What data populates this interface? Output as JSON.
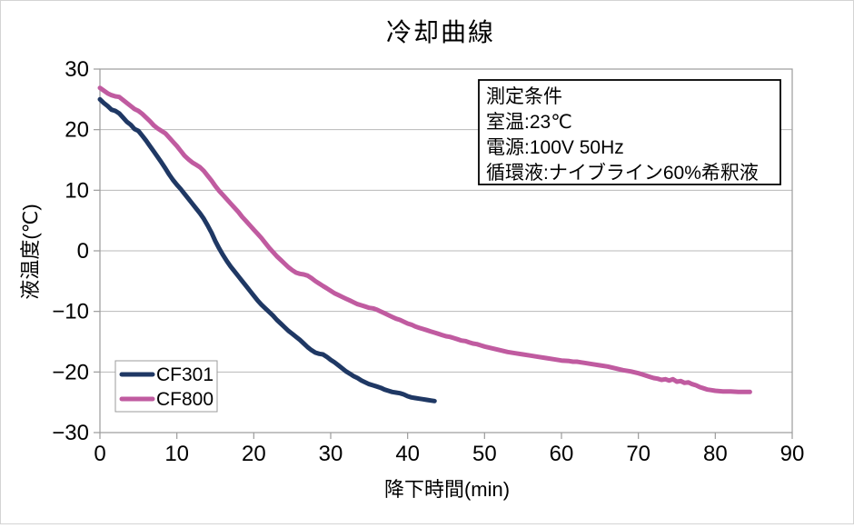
{
  "chart_data": {
    "type": "line",
    "title": "冷却曲線",
    "xlabel": "降下時間(min)",
    "ylabel": "液温度(℃)",
    "xlim": [
      0,
      90
    ],
    "ylim": [
      -30,
      30
    ],
    "x_ticks": [
      0,
      10,
      20,
      30,
      40,
      50,
      60,
      70,
      80,
      90
    ],
    "y_ticks": [
      30,
      20,
      10,
      0,
      -10,
      -20,
      -30
    ],
    "grid": "horizontal",
    "legend_position": "inside-bottom-left",
    "annotation_box": {
      "lines": [
        "測定条件",
        "室温:23℃",
        "電源:100V 50Hz",
        "循環液:ナイブライン60%希釈液"
      ]
    },
    "series": [
      {
        "name": "CF301",
        "color": "#1F3864",
        "points": [
          [
            0,
            25.0
          ],
          [
            0.5,
            24.4
          ],
          [
            1,
            23.9
          ],
          [
            1.5,
            23.3
          ],
          [
            2,
            23.1
          ],
          [
            2.5,
            22.7
          ],
          [
            3,
            22.0
          ],
          [
            3.5,
            21.3
          ],
          [
            4,
            20.8
          ],
          [
            4.5,
            20.1
          ],
          [
            5,
            19.8
          ],
          [
            5.5,
            19.0
          ],
          [
            6,
            18.2
          ],
          [
            6.5,
            17.3
          ],
          [
            7,
            16.4
          ],
          [
            7.5,
            15.5
          ],
          [
            8,
            14.6
          ],
          [
            8.5,
            13.6
          ],
          [
            9,
            12.6
          ],
          [
            9.5,
            11.7
          ],
          [
            10,
            10.9
          ],
          [
            10.5,
            10.2
          ],
          [
            11,
            9.4
          ],
          [
            11.5,
            8.6
          ],
          [
            12,
            7.8
          ],
          [
            12.5,
            7.0
          ],
          [
            13,
            6.2
          ],
          [
            13.5,
            5.3
          ],
          [
            14,
            4.2
          ],
          [
            14.5,
            3.0
          ],
          [
            15,
            1.6
          ],
          [
            15.5,
            0.4
          ],
          [
            16,
            -0.7
          ],
          [
            16.5,
            -1.7
          ],
          [
            17,
            -2.6
          ],
          [
            17.5,
            -3.4
          ],
          [
            18,
            -4.2
          ],
          [
            18.5,
            -5.0
          ],
          [
            19,
            -5.8
          ],
          [
            19.5,
            -6.6
          ],
          [
            20,
            -7.4
          ],
          [
            20.5,
            -8.2
          ],
          [
            21,
            -8.9
          ],
          [
            21.5,
            -9.5
          ],
          [
            22,
            -10.1
          ],
          [
            22.5,
            -10.7
          ],
          [
            23,
            -11.4
          ],
          [
            23.5,
            -12.0
          ],
          [
            24,
            -12.6
          ],
          [
            24.5,
            -13.2
          ],
          [
            25,
            -13.7
          ],
          [
            25.5,
            -14.2
          ],
          [
            26,
            -14.7
          ],
          [
            26.5,
            -15.3
          ],
          [
            27,
            -15.9
          ],
          [
            27.5,
            -16.4
          ],
          [
            28,
            -16.8
          ],
          [
            28.5,
            -17.0
          ],
          [
            29,
            -17.1
          ],
          [
            29.5,
            -17.5
          ],
          [
            30,
            -18.0
          ],
          [
            30.5,
            -18.4
          ],
          [
            31,
            -18.9
          ],
          [
            31.5,
            -19.4
          ],
          [
            32,
            -19.9
          ],
          [
            32.5,
            -20.3
          ],
          [
            33,
            -20.7
          ],
          [
            33.5,
            -21.0
          ],
          [
            34,
            -21.4
          ],
          [
            34.5,
            -21.7
          ],
          [
            35,
            -22.0
          ],
          [
            35.5,
            -22.2
          ],
          [
            36,
            -22.4
          ],
          [
            36.5,
            -22.6
          ],
          [
            37,
            -22.9
          ],
          [
            37.5,
            -23.1
          ],
          [
            38,
            -23.3
          ],
          [
            38.5,
            -23.4
          ],
          [
            39,
            -23.5
          ],
          [
            39.5,
            -23.7
          ],
          [
            40,
            -24.0
          ],
          [
            40.5,
            -24.2
          ],
          [
            41,
            -24.3
          ],
          [
            41.5,
            -24.4
          ],
          [
            42,
            -24.5
          ],
          [
            42.5,
            -24.6
          ],
          [
            43,
            -24.7
          ],
          [
            43.5,
            -24.8
          ]
        ]
      },
      {
        "name": "CF800",
        "color": "#C05BA0",
        "points": [
          [
            0,
            26.9
          ],
          [
            1,
            26.0
          ],
          [
            1.5,
            25.7
          ],
          [
            2,
            25.5
          ],
          [
            2.5,
            25.4
          ],
          [
            3,
            24.9
          ],
          [
            4,
            23.9
          ],
          [
            4.5,
            23.4
          ],
          [
            5,
            23.1
          ],
          [
            5.5,
            22.6
          ],
          [
            6,
            22.0
          ],
          [
            6.5,
            21.4
          ],
          [
            7,
            20.7
          ],
          [
            7.5,
            20.2
          ],
          [
            8,
            19.8
          ],
          [
            8.5,
            19.4
          ],
          [
            9,
            18.7
          ],
          [
            9.5,
            18.0
          ],
          [
            10,
            17.3
          ],
          [
            10.5,
            16.5
          ],
          [
            11,
            15.7
          ],
          [
            11.5,
            15.1
          ],
          [
            12,
            14.6
          ],
          [
            12.5,
            14.2
          ],
          [
            13,
            13.8
          ],
          [
            13.5,
            13.2
          ],
          [
            14,
            12.4
          ],
          [
            14.5,
            11.6
          ],
          [
            15,
            10.7
          ],
          [
            15.5,
            9.9
          ],
          [
            16,
            9.2
          ],
          [
            16.5,
            8.5
          ],
          [
            17,
            7.8
          ],
          [
            17.5,
            7.1
          ],
          [
            18,
            6.4
          ],
          [
            18.5,
            5.6
          ],
          [
            19,
            4.9
          ],
          [
            19.5,
            4.2
          ],
          [
            20,
            3.5
          ],
          [
            20.5,
            2.8
          ],
          [
            21,
            2.1
          ],
          [
            21.5,
            1.3
          ],
          [
            22,
            0.5
          ],
          [
            22.5,
            -0.2
          ],
          [
            23,
            -0.9
          ],
          [
            23.5,
            -1.5
          ],
          [
            24,
            -2.1
          ],
          [
            24.5,
            -2.7
          ],
          [
            25,
            -3.2
          ],
          [
            25.5,
            -3.6
          ],
          [
            26,
            -3.8
          ],
          [
            26.5,
            -3.9
          ],
          [
            27,
            -4.1
          ],
          [
            27.5,
            -4.5
          ],
          [
            28,
            -5.0
          ],
          [
            28.5,
            -5.4
          ],
          [
            29,
            -5.8
          ],
          [
            29.5,
            -6.2
          ],
          [
            30,
            -6.6
          ],
          [
            30.5,
            -7.0
          ],
          [
            31,
            -7.3
          ],
          [
            31.5,
            -7.6
          ],
          [
            32,
            -7.9
          ],
          [
            32.5,
            -8.2
          ],
          [
            33,
            -8.5
          ],
          [
            33.5,
            -8.8
          ],
          [
            34,
            -9.0
          ],
          [
            34.5,
            -9.2
          ],
          [
            35,
            -9.4
          ],
          [
            35.5,
            -9.5
          ],
          [
            36,
            -9.7
          ],
          [
            36.5,
            -10.0
          ],
          [
            37,
            -10.3
          ],
          [
            37.5,
            -10.6
          ],
          [
            38,
            -10.9
          ],
          [
            38.5,
            -11.2
          ],
          [
            39,
            -11.4
          ],
          [
            39.5,
            -11.7
          ],
          [
            40,
            -12.0
          ],
          [
            40.5,
            -12.2
          ],
          [
            41,
            -12.5
          ],
          [
            41.5,
            -12.7
          ],
          [
            42,
            -12.9
          ],
          [
            42.5,
            -13.1
          ],
          [
            43,
            -13.3
          ],
          [
            43.5,
            -13.5
          ],
          [
            44,
            -13.7
          ],
          [
            44.5,
            -13.9
          ],
          [
            45,
            -14.1
          ],
          [
            45.5,
            -14.2
          ],
          [
            46,
            -14.4
          ],
          [
            46.5,
            -14.6
          ],
          [
            47,
            -14.8
          ],
          [
            47.5,
            -14.9
          ],
          [
            48,
            -15.1
          ],
          [
            48.5,
            -15.3
          ],
          [
            49,
            -15.4
          ],
          [
            49.5,
            -15.6
          ],
          [
            50,
            -15.8
          ],
          [
            51,
            -16.1
          ],
          [
            52,
            -16.4
          ],
          [
            53,
            -16.7
          ],
          [
            54,
            -16.9
          ],
          [
            55,
            -17.1
          ],
          [
            56,
            -17.3
          ],
          [
            57,
            -17.5
          ],
          [
            58,
            -17.7
          ],
          [
            59,
            -17.9
          ],
          [
            60,
            -18.1
          ],
          [
            61,
            -18.2
          ],
          [
            61.5,
            -18.3
          ],
          [
            62,
            -18.3
          ],
          [
            62.5,
            -18.4
          ],
          [
            63,
            -18.5
          ],
          [
            64,
            -18.7
          ],
          [
            65,
            -18.9
          ],
          [
            66,
            -19.1
          ],
          [
            67,
            -19.4
          ],
          [
            68,
            -19.7
          ],
          [
            69,
            -19.9
          ],
          [
            70,
            -20.2
          ],
          [
            70.5,
            -20.4
          ],
          [
            71,
            -20.6
          ],
          [
            71.5,
            -20.8
          ],
          [
            72,
            -21.0
          ],
          [
            72.5,
            -21.1
          ],
          [
            73,
            -21.3
          ],
          [
            73.5,
            -21.2
          ],
          [
            74,
            -21.4
          ],
          [
            74.5,
            -21.2
          ],
          [
            75,
            -21.6
          ],
          [
            75.5,
            -21.5
          ],
          [
            76,
            -21.8
          ],
          [
            76.5,
            -21.7
          ],
          [
            77,
            -22.0
          ],
          [
            77.5,
            -22.2
          ],
          [
            78,
            -22.5
          ],
          [
            78.5,
            -22.7
          ],
          [
            79,
            -22.9
          ],
          [
            79.5,
            -23.0
          ],
          [
            80,
            -23.1
          ],
          [
            81,
            -23.2
          ],
          [
            82,
            -23.2
          ],
          [
            83,
            -23.3
          ],
          [
            84,
            -23.3
          ],
          [
            84.5,
            -23.3
          ]
        ]
      }
    ],
    "colors": {
      "grid": "#b8b8b8",
      "plot_border": "#9b9b9b",
      "legend_border": "#9b9b9b",
      "annotation_border": "#000000",
      "text": "#000000",
      "background": "#ffffff"
    }
  }
}
